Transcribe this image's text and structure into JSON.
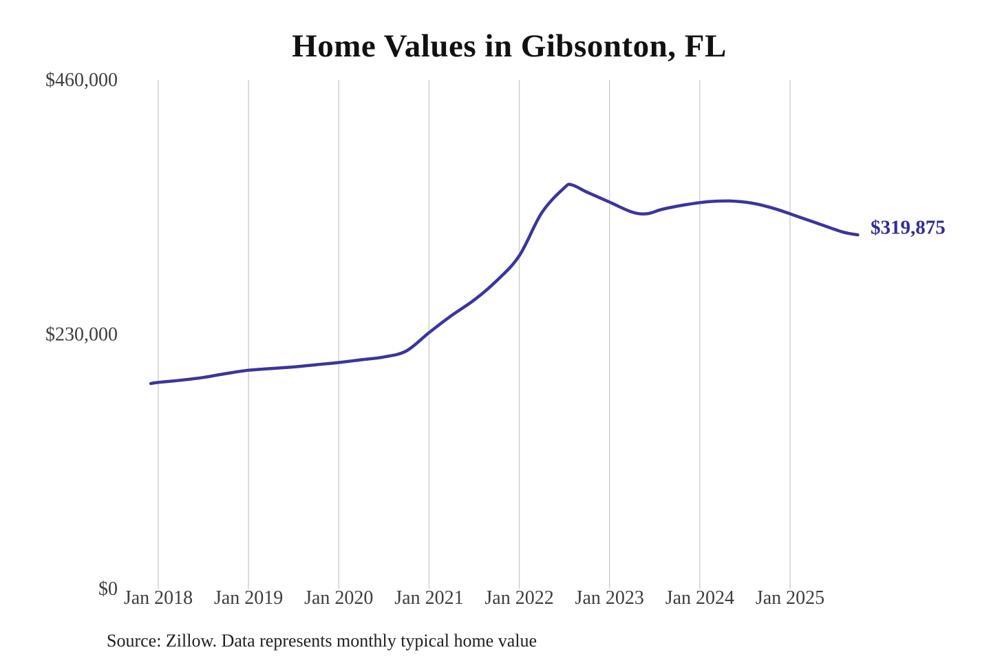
{
  "title": "Home Values in Gibsonton, FL",
  "source_note": "Source: Zillow. Data represents monthly typical home value",
  "colors": {
    "line": "#3b359c",
    "end_label": "#322d93",
    "grid": "#cdcdcd",
    "axis_text": "#3e3e3e",
    "source_text": "#1f1f1f",
    "title_text": "#111111",
    "background": "#ffffff"
  },
  "chart_data": {
    "type": "line",
    "title": "Home Values in Gibsonton, FL",
    "xlabel": "",
    "ylabel": "",
    "x_unit": "month",
    "x_tick_labels": [
      "Jan 2018",
      "Jan 2019",
      "Jan 2020",
      "Jan 2021",
      "Jan 2022",
      "Jan 2023",
      "Jan 2024",
      "Jan 2025"
    ],
    "y_ticks": [
      {
        "label": "$460,000",
        "value": 460000
      },
      {
        "label": "$230,000",
        "value": 230000
      },
      {
        "label": "$0",
        "value": 0
      }
    ],
    "ylim": [
      0,
      460000
    ],
    "grid": "vertical-only",
    "legend": "none",
    "end_label": "$319,875",
    "final_value": 319875,
    "series": [
      {
        "name": "Typical home value",
        "points": [
          [
            "2017-12",
            185500
          ],
          [
            "2018-01",
            186500
          ],
          [
            "2018-04",
            188500
          ],
          [
            "2018-07",
            191000
          ],
          [
            "2018-10",
            194500
          ],
          [
            "2019-01",
            197500
          ],
          [
            "2019-04",
            199000
          ],
          [
            "2019-07",
            200500
          ],
          [
            "2019-10",
            202500
          ],
          [
            "2020-01",
            204500
          ],
          [
            "2020-04",
            207000
          ],
          [
            "2020-07",
            209500
          ],
          [
            "2020-10",
            215000
          ],
          [
            "2021-01",
            231500
          ],
          [
            "2021-04",
            247000
          ],
          [
            "2021-07",
            261000
          ],
          [
            "2021-10",
            278500
          ],
          [
            "2022-01",
            301000
          ],
          [
            "2022-04",
            340000
          ],
          [
            "2022-07",
            362500
          ],
          [
            "2022-08",
            365000
          ],
          [
            "2022-10",
            358500
          ],
          [
            "2023-01",
            349500
          ],
          [
            "2023-04",
            340500
          ],
          [
            "2023-06",
            339000
          ],
          [
            "2023-08",
            343000
          ],
          [
            "2023-11",
            347000
          ],
          [
            "2024-02",
            349800
          ],
          [
            "2024-05",
            350500
          ],
          [
            "2024-08",
            348500
          ],
          [
            "2024-11",
            343500
          ],
          [
            "2025-02",
            336500
          ],
          [
            "2025-05",
            329500
          ],
          [
            "2025-08",
            322500
          ],
          [
            "2025-10",
            319875
          ]
        ]
      }
    ]
  }
}
